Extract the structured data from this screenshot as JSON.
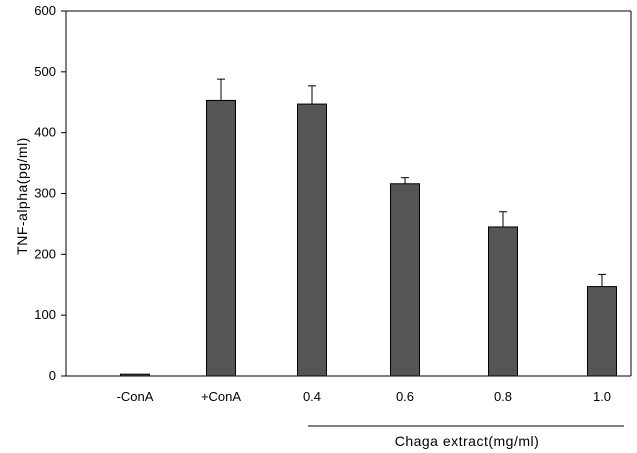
{
  "chart_data": {
    "type": "bar",
    "title": "",
    "xlabel": "",
    "ylabel": "TNF-alpha(pg/ml)",
    "ylim": [
      0,
      600
    ],
    "yticks": [
      "0",
      "100",
      "200",
      "300",
      "400",
      "500",
      "600"
    ],
    "categories": [
      "-ConA",
      "+ConA",
      "0.4",
      "0.6",
      "0.8",
      "1.0"
    ],
    "values": [
      3,
      453,
      447,
      316,
      245,
      147
    ],
    "errors": [
      0,
      35,
      30,
      10,
      25,
      20
    ],
    "bar_color": "#555555",
    "grid": false,
    "group_label": "Chaga extract(mg/ml)"
  }
}
